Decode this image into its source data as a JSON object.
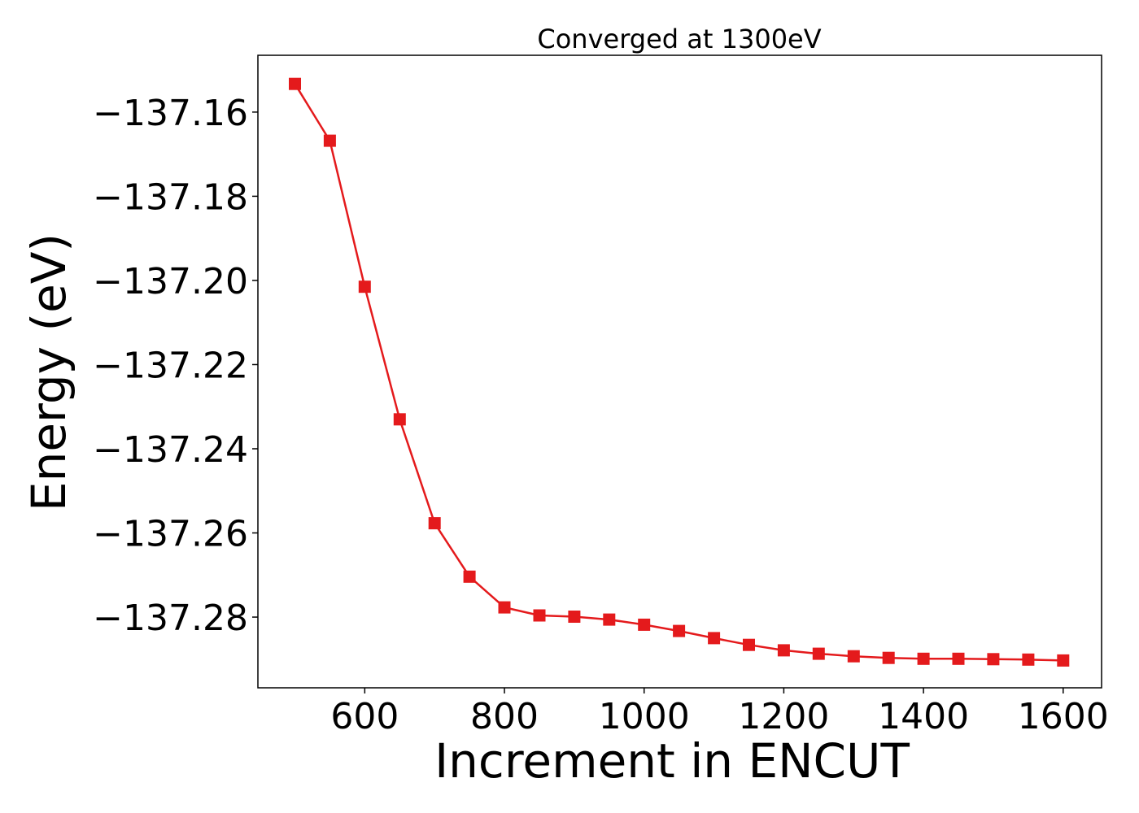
{
  "chart_data": {
    "type": "line",
    "title": "Converged at 1300eV",
    "xlabel": "Increment in ENCUT",
    "ylabel": "Energy (eV)",
    "x": [
      500,
      550,
      600,
      650,
      700,
      750,
      800,
      850,
      900,
      950,
      1000,
      1050,
      1100,
      1150,
      1200,
      1250,
      1300,
      1350,
      1400,
      1450,
      1500,
      1550,
      1600
    ],
    "series": [
      {
        "color": "#e41a1c",
        "marker": "square",
        "values": [
          -137.1533,
          -137.1668,
          -137.2015,
          -137.233,
          -137.2577,
          -137.2704,
          -137.2777,
          -137.2796,
          -137.2799,
          -137.2806,
          -137.2818,
          -137.2833,
          -137.285,
          -137.2866,
          -137.2879,
          -137.2887,
          -137.2893,
          -137.2897,
          -137.2899,
          -137.2899,
          -137.29,
          -137.2901,
          -137.2903
        ]
      }
    ],
    "xlim": [
      447,
      1655
    ],
    "ylim": [
      -137.2968,
      -137.1465
    ],
    "xticks": [
      600,
      800,
      1000,
      1200,
      1400,
      1600
    ],
    "yticks": [
      -137.16,
      -137.18,
      -137.2,
      -137.22,
      -137.24,
      -137.26,
      -137.28
    ],
    "ytick_labels": [
      "−137.16",
      "−137.18",
      "−137.20",
      "−137.22",
      "−137.24",
      "−137.26",
      "−137.28"
    ],
    "grid": false,
    "legend": "none"
  }
}
